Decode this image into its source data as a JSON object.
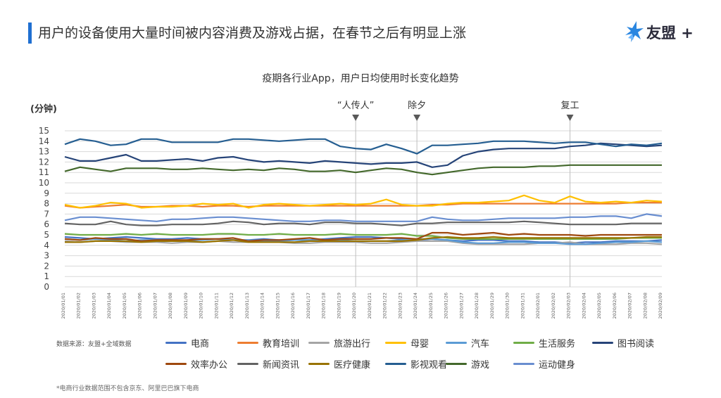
{
  "header": {
    "title": "用户的设备使用大量时间被内容消费及游戏占据，在春节之后有明显上涨",
    "logo_text": "友盟 +"
  },
  "source_note": "数据来源：友盟+全域数据",
  "footnote": "*电商行业数据范围不包含京东、阿里巴巴旗下电商",
  "chart_data": {
    "type": "line",
    "title": "疫期各行业App，用户日均使用时长变化趋势",
    "ylabel": "(分钟)",
    "ylim": [
      0,
      15
    ],
    "yticks": [
      "0",
      "1",
      "2",
      "3",
      "4",
      "5",
      "6",
      "7",
      "8",
      "9",
      "10",
      "11",
      "12",
      "13",
      "14",
      "15"
    ],
    "grid": true,
    "legend_position": "bottom",
    "x": [
      "2020/01/01",
      "2020/01/02",
      "2020/01/03",
      "2020/01/04",
      "2020/01/05",
      "2020/01/06",
      "2020/01/07",
      "2020/01/08",
      "2020/01/09",
      "2020/01/10",
      "2020/01/11",
      "2020/01/12",
      "2020/01/13",
      "2020/01/14",
      "2020/01/15",
      "2020/01/16",
      "2020/01/17",
      "2020/01/18",
      "2020/01/19",
      "2020/01/20",
      "2020/01/21",
      "2020/01/22",
      "2020/01/23",
      "2020/01/24",
      "2020/01/25",
      "2020/01/26",
      "2020/01/27",
      "2020/01/28",
      "2020/01/29",
      "2020/01/30",
      "2020/01/31",
      "2020/02/01",
      "2020/02/02",
      "2020/02/03",
      "2020/02/04",
      "2020/02/05",
      "2020/02/06",
      "2020/02/07",
      "2020/02/08",
      "2020/02/09"
    ],
    "annotations": [
      {
        "label": "“人传人”",
        "x": "2020/01/20"
      },
      {
        "label": "除夕",
        "x": "2020/01/24"
      },
      {
        "label": "复工",
        "x": "2020/02/03"
      }
    ],
    "series": [
      {
        "name": "电商",
        "color": "#4472c4",
        "values": [
          4.8,
          4.7,
          4.6,
          4.7,
          4.8,
          4.7,
          4.6,
          4.6,
          4.7,
          4.6,
          4.6,
          4.5,
          4.5,
          4.6,
          4.5,
          4.5,
          4.5,
          4.6,
          4.7,
          4.8,
          4.8,
          4.7,
          4.6,
          4.5,
          4.6,
          4.5,
          4.4,
          4.5,
          4.5,
          4.4,
          4.4,
          4.3,
          4.3,
          4.2,
          4.3,
          4.3,
          4.4,
          4.4,
          4.4,
          4.5
        ]
      },
      {
        "name": "教育培训",
        "color": "#ed7d31",
        "values": [
          7.8,
          7.6,
          7.7,
          7.8,
          7.9,
          7.7,
          7.7,
          7.8,
          7.8,
          7.7,
          7.8,
          7.8,
          7.7,
          7.8,
          7.8,
          7.8,
          7.8,
          7.8,
          7.8,
          7.8,
          7.8,
          7.8,
          7.8,
          7.8,
          7.9,
          7.9,
          8.0,
          8.0,
          8.0,
          8.0,
          8.0,
          8.0,
          8.0,
          8.0,
          8.0,
          8.0,
          8.0,
          8.1,
          8.1,
          8.1
        ]
      },
      {
        "name": "旅游出行",
        "color": "#a5a5a5",
        "values": [
          4.4,
          4.3,
          4.4,
          4.4,
          4.3,
          4.3,
          4.3,
          4.2,
          4.3,
          4.3,
          4.4,
          4.3,
          4.3,
          4.4,
          4.3,
          4.2,
          4.2,
          4.3,
          4.3,
          4.3,
          4.2,
          4.2,
          4.3,
          4.4,
          4.4,
          4.4,
          4.2,
          4.1,
          4.1,
          4.1,
          4.1,
          4.2,
          4.2,
          4.3,
          4.1,
          4.1,
          4.1,
          4.2,
          4.2,
          4.1
        ]
      },
      {
        "name": "母婴",
        "color": "#ffc000",
        "values": [
          7.9,
          7.6,
          7.8,
          8.1,
          8.0,
          7.6,
          7.7,
          7.7,
          7.8,
          8.0,
          7.9,
          8.0,
          7.6,
          7.9,
          8.0,
          7.9,
          7.8,
          7.9,
          8.0,
          7.9,
          8.0,
          8.4,
          7.9,
          7.8,
          7.8,
          8.0,
          8.1,
          8.1,
          8.2,
          8.3,
          8.8,
          8.3,
          8.1,
          8.7,
          8.2,
          8.1,
          8.2,
          8.1,
          8.3,
          8.2
        ]
      },
      {
        "name": "汽车",
        "color": "#5b9bd5",
        "values": [
          4.6,
          4.5,
          4.6,
          4.5,
          4.4,
          4.5,
          4.5,
          4.4,
          4.5,
          4.5,
          4.6,
          4.5,
          4.5,
          4.4,
          4.4,
          4.5,
          4.5,
          4.4,
          4.5,
          4.4,
          4.4,
          4.4,
          4.5,
          4.6,
          4.6,
          4.5,
          4.3,
          4.2,
          4.2,
          4.3,
          4.3,
          4.2,
          4.2,
          4.1,
          4.1,
          4.2,
          4.3,
          4.3,
          4.4,
          4.3
        ]
      },
      {
        "name": "生活服务",
        "color": "#70ad47",
        "values": [
          5.1,
          5.0,
          5.0,
          5.0,
          5.1,
          5.0,
          5.1,
          5.0,
          5.0,
          5.0,
          5.1,
          5.1,
          5.0,
          5.0,
          5.1,
          5.0,
          5.0,
          5.0,
          5.1,
          5.0,
          5.0,
          5.0,
          5.1,
          4.9,
          4.9,
          4.7,
          4.6,
          4.6,
          4.6,
          4.6,
          4.6,
          4.6,
          4.6,
          4.6,
          4.6,
          4.6,
          4.6,
          4.7,
          4.7,
          4.7
        ]
      },
      {
        "name": "图书阅读",
        "color": "#264478",
        "values": [
          12.5,
          12.1,
          12.1,
          12.4,
          12.7,
          12.1,
          12.1,
          12.2,
          12.3,
          12.1,
          12.4,
          12.5,
          12.2,
          12.0,
          12.1,
          12.0,
          11.9,
          12.1,
          12.0,
          11.9,
          11.8,
          11.9,
          11.9,
          12.0,
          11.5,
          11.7,
          12.6,
          13.0,
          13.2,
          13.3,
          13.3,
          13.3,
          13.3,
          13.5,
          13.6,
          13.8,
          13.7,
          13.6,
          13.5,
          13.6
        ]
      },
      {
        "name": "效率办公",
        "color": "#9e480e",
        "values": [
          4.6,
          4.5,
          4.7,
          4.6,
          4.6,
          4.4,
          4.5,
          4.5,
          4.5,
          4.6,
          4.6,
          4.7,
          4.4,
          4.5,
          4.5,
          4.6,
          4.7,
          4.5,
          4.6,
          4.6,
          4.6,
          4.7,
          4.7,
          4.6,
          5.2,
          5.2,
          5.0,
          5.1,
          5.2,
          5.0,
          5.1,
          5.0,
          5.0,
          5.0,
          4.9,
          5.0,
          5.0,
          5.0,
          5.0,
          5.0
        ]
      },
      {
        "name": "新闻资讯",
        "color": "#636363",
        "values": [
          6.1,
          6.0,
          6.0,
          6.3,
          6.0,
          5.9,
          5.9,
          6.0,
          6.0,
          6.0,
          6.1,
          6.3,
          6.2,
          6.0,
          6.1,
          6.1,
          6.0,
          6.2,
          6.2,
          6.1,
          6.1,
          6.0,
          5.9,
          6.1,
          6.1,
          6.2,
          6.2,
          6.2,
          6.2,
          6.2,
          6.3,
          6.2,
          6.1,
          6.0,
          6.0,
          6.0,
          6.0,
          6.1,
          6.1,
          6.1
        ]
      },
      {
        "name": "医疗健康",
        "color": "#997300",
        "values": [
          4.3,
          4.3,
          4.4,
          4.4,
          4.4,
          4.3,
          4.4,
          4.4,
          4.4,
          4.3,
          4.4,
          4.5,
          4.3,
          4.3,
          4.3,
          4.3,
          4.4,
          4.4,
          4.4,
          4.4,
          4.4,
          4.4,
          4.4,
          4.5,
          4.7,
          4.8,
          4.7,
          4.7,
          4.8,
          4.7,
          4.7,
          4.7,
          4.7,
          4.7,
          4.7,
          4.7,
          4.7,
          4.7,
          4.8,
          4.8
        ]
      },
      {
        "name": "影视观看",
        "color": "#255e91",
        "values": [
          13.7,
          14.2,
          14.0,
          13.6,
          13.7,
          14.2,
          14.2,
          13.9,
          13.9,
          13.9,
          13.9,
          14.2,
          14.2,
          14.1,
          14.0,
          14.1,
          14.2,
          14.2,
          13.5,
          13.3,
          13.2,
          13.7,
          13.3,
          12.8,
          13.6,
          13.6,
          13.7,
          13.8,
          14.0,
          14.0,
          14.0,
          13.9,
          13.8,
          13.9,
          13.9,
          13.7,
          13.5,
          13.7,
          13.6,
          13.8
        ]
      },
      {
        "name": "游戏",
        "color": "#43682b",
        "values": [
          11.1,
          11.5,
          11.3,
          11.1,
          11.4,
          11.4,
          11.4,
          11.3,
          11.3,
          11.4,
          11.3,
          11.2,
          11.3,
          11.2,
          11.4,
          11.3,
          11.1,
          11.1,
          11.2,
          11.0,
          11.2,
          11.4,
          11.3,
          11.0,
          10.8,
          11.0,
          11.2,
          11.4,
          11.5,
          11.5,
          11.5,
          11.6,
          11.6,
          11.7,
          11.7,
          11.7,
          11.7,
          11.7,
          11.7,
          11.7
        ]
      },
      {
        "name": "运动健身",
        "color": "#698ed0",
        "values": [
          6.4,
          6.7,
          6.7,
          6.6,
          6.5,
          6.4,
          6.3,
          6.5,
          6.5,
          6.6,
          6.7,
          6.7,
          6.6,
          6.5,
          6.4,
          6.3,
          6.3,
          6.4,
          6.4,
          6.3,
          6.3,
          6.3,
          6.3,
          6.3,
          6.7,
          6.5,
          6.4,
          6.4,
          6.5,
          6.6,
          6.6,
          6.6,
          6.6,
          6.7,
          6.7,
          6.8,
          6.8,
          6.6,
          7.0,
          6.8
        ]
      }
    ]
  }
}
